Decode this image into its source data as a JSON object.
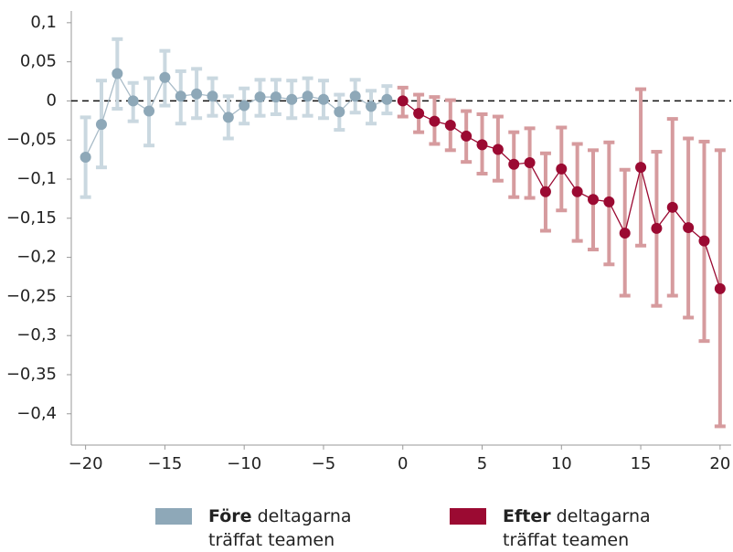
{
  "chart_data": {
    "type": "errorbar_line",
    "x": [
      -20,
      -19,
      -18,
      -17,
      -16,
      -15,
      -14,
      -13,
      -12,
      -11,
      -10,
      -9,
      -8,
      -7,
      -6,
      -5,
      -4,
      -3,
      -2,
      -1,
      0,
      1,
      2,
      3,
      4,
      5,
      6,
      7,
      8,
      9,
      10,
      11,
      12,
      13,
      14,
      15,
      16,
      17,
      18,
      19,
      20
    ],
    "xlim": [
      -20.9,
      20.7
    ],
    "ylim": [
      -0.44,
      0.115
    ],
    "xticks": [
      {
        "value": -20,
        "label": "−20"
      },
      {
        "value": -15,
        "label": "−15"
      },
      {
        "value": -10,
        "label": "−10"
      },
      {
        "value": -5,
        "label": "−5"
      },
      0,
      5,
      10,
      15,
      20
    ],
    "yticks": [
      {
        "value": 0.1,
        "label": "0,1"
      },
      {
        "value": 0.05,
        "label": "0,05"
      },
      0,
      {
        "value": -0.05,
        "label": "−0,05"
      },
      {
        "value": -0.1,
        "label": "−0,1"
      },
      {
        "value": -0.15,
        "label": "−0,15"
      },
      {
        "value": -0.2,
        "label": "−0,2"
      },
      {
        "value": -0.25,
        "label": "−0,25"
      },
      {
        "value": -0.3,
        "label": "−0,3"
      },
      {
        "value": -0.35,
        "label": "−0,35"
      },
      {
        "value": -0.4,
        "label": "−0,4"
      }
    ],
    "zero_line": true,
    "series": [
      {
        "name": "Före",
        "name_detail": "deltagarna träffat teamen",
        "color": "#8ea8b8",
        "line_color": "#a9bcc8",
        "error_color": "#cad8e0",
        "values": [
          -0.072,
          -0.03,
          0.035,
          0,
          -0.013,
          0.03,
          0.006,
          0.009,
          0.006,
          -0.021,
          -0.006,
          0.005,
          0.005,
          0.002,
          0.006,
          0.002,
          -0.014,
          0.006,
          -0.007,
          0.002,
          null,
          null,
          null,
          null,
          null,
          null,
          null,
          null,
          null,
          null,
          null,
          null,
          null,
          null,
          null,
          null,
          null,
          null,
          null,
          null,
          null
        ],
        "lower": [
          -0.123,
          -0.085,
          -0.01,
          -0.026,
          -0.057,
          -0.006,
          -0.029,
          -0.022,
          -0.019,
          -0.048,
          -0.029,
          -0.019,
          -0.017,
          -0.022,
          -0.019,
          -0.022,
          -0.037,
          -0.015,
          -0.029,
          -0.016,
          null,
          null,
          null,
          null,
          null,
          null,
          null,
          null,
          null,
          null,
          null,
          null,
          null,
          null,
          null,
          null,
          null,
          null,
          null,
          null,
          null
        ],
        "upper": [
          -0.021,
          0.026,
          0.079,
          0.023,
          0.029,
          0.064,
          0.038,
          0.041,
          0.029,
          0.006,
          0.016,
          0.027,
          0.027,
          0.026,
          0.029,
          0.026,
          0.008,
          0.027,
          0.013,
          0.019,
          null,
          null,
          null,
          null,
          null,
          null,
          null,
          null,
          null,
          null,
          null,
          null,
          null,
          null,
          null,
          null,
          null,
          null,
          null,
          null,
          null
        ]
      },
      {
        "name": "Efter",
        "name_detail": "deltagarna träffat teamen",
        "color": "#9b0a32",
        "line_color": "#9b0a32",
        "error_color": "#d69b9e",
        "values": [
          null,
          null,
          null,
          null,
          null,
          null,
          null,
          null,
          null,
          null,
          null,
          null,
          null,
          null,
          null,
          null,
          null,
          null,
          null,
          null,
          0,
          -0.016,
          -0.026,
          -0.031,
          -0.045,
          -0.056,
          -0.062,
          -0.081,
          -0.079,
          -0.116,
          -0.087,
          -0.116,
          -0.126,
          -0.129,
          -0.169,
          -0.085,
          -0.163,
          -0.136,
          -0.162,
          -0.179,
          -0.24
        ],
        "lower": [
          null,
          null,
          null,
          null,
          null,
          null,
          null,
          null,
          null,
          null,
          null,
          null,
          null,
          null,
          null,
          null,
          null,
          null,
          null,
          null,
          -0.02,
          -0.04,
          -0.055,
          -0.063,
          -0.078,
          -0.093,
          -0.102,
          -0.123,
          -0.124,
          -0.166,
          -0.14,
          -0.179,
          -0.19,
          -0.209,
          -0.249,
          -0.185,
          -0.262,
          -0.249,
          -0.277,
          -0.307,
          -0.416
        ],
        "upper": [
          null,
          null,
          null,
          null,
          null,
          null,
          null,
          null,
          null,
          null,
          null,
          null,
          null,
          null,
          null,
          null,
          null,
          null,
          null,
          null,
          0.017,
          0.008,
          0.005,
          0.001,
          -0.013,
          -0.017,
          -0.02,
          -0.04,
          -0.035,
          -0.067,
          -0.034,
          -0.055,
          -0.063,
          -0.053,
          -0.088,
          0.015,
          -0.065,
          -0.023,
          -0.048,
          -0.052,
          -0.063
        ]
      }
    ]
  }
}
